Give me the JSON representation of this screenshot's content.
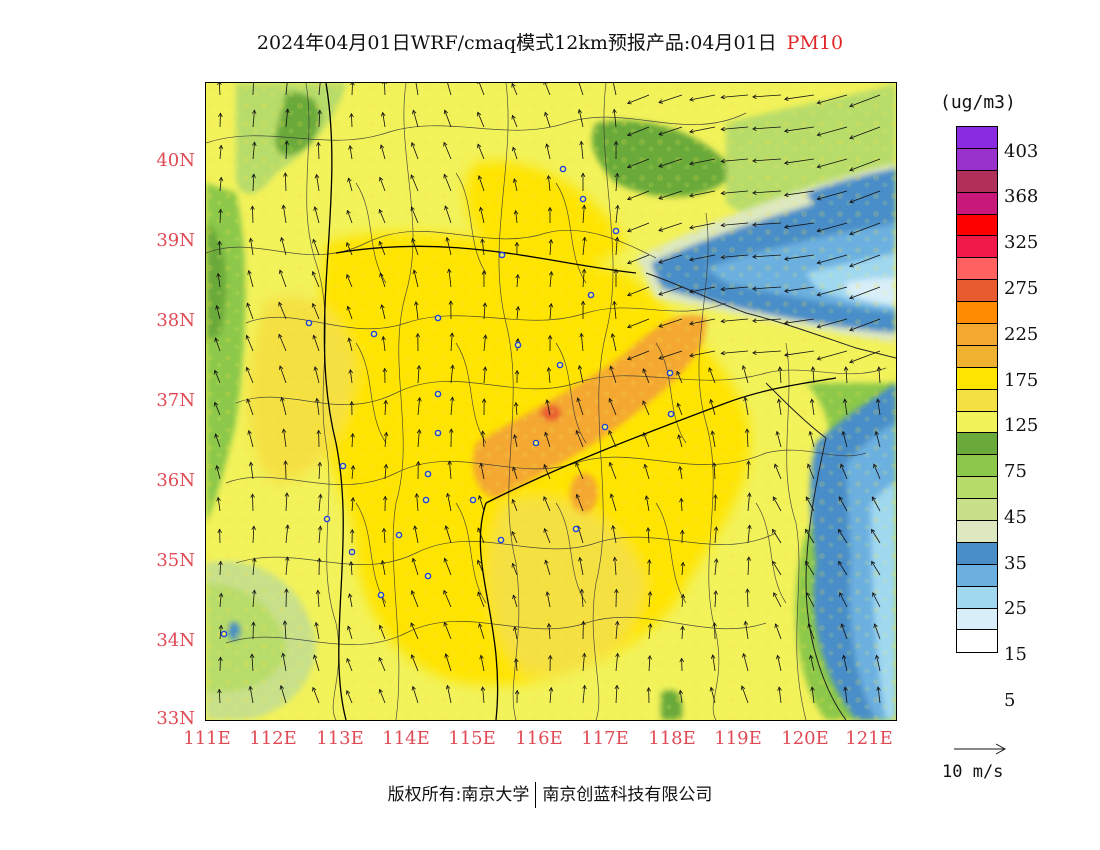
{
  "title": {
    "text": "2024年04月01日WRF/cmaq模式12km预报产品:04月01日",
    "pollutant": "PM10"
  },
  "axes": {
    "lat_labels": [
      "40N",
      "39N",
      "38N",
      "37N",
      "36N",
      "35N",
      "34N",
      "33N"
    ],
    "lon_labels": [
      "111E",
      "112E",
      "113E",
      "114E",
      "115E",
      "116E",
      "117E",
      "118E",
      "119E",
      "120E",
      "121E"
    ]
  },
  "legend": {
    "unit": "(ug/m3)",
    "labels": [
      "403",
      "368",
      "325",
      "275",
      "225",
      "175",
      "125",
      "75",
      "45",
      "35",
      "25",
      "15",
      "5"
    ],
    "colors": [
      "#8a2be2",
      "#9932cc",
      "#b0305a",
      "#c8187a",
      "#ff0000",
      "#f01a4a",
      "#ff6060",
      "#e85a30",
      "#ff8c00",
      "#f4a830",
      "#f0b030",
      "#ffe400",
      "#f5e043",
      "#f2f25a",
      "#6aaa3a",
      "#8cc84a",
      "#b8dc6a",
      "#c8e08a",
      "#dde8c0",
      "#4a8ec8",
      "#6cb0e0",
      "#a0d8f0",
      "#d8eef8",
      "#ffffff"
    ]
  },
  "wind": {
    "reference_label": "10 m/s"
  },
  "copyright": {
    "left": "版权所有:南京大学",
    "right": "南京创蓝科技有限公司"
  },
  "cities_count": 28
}
